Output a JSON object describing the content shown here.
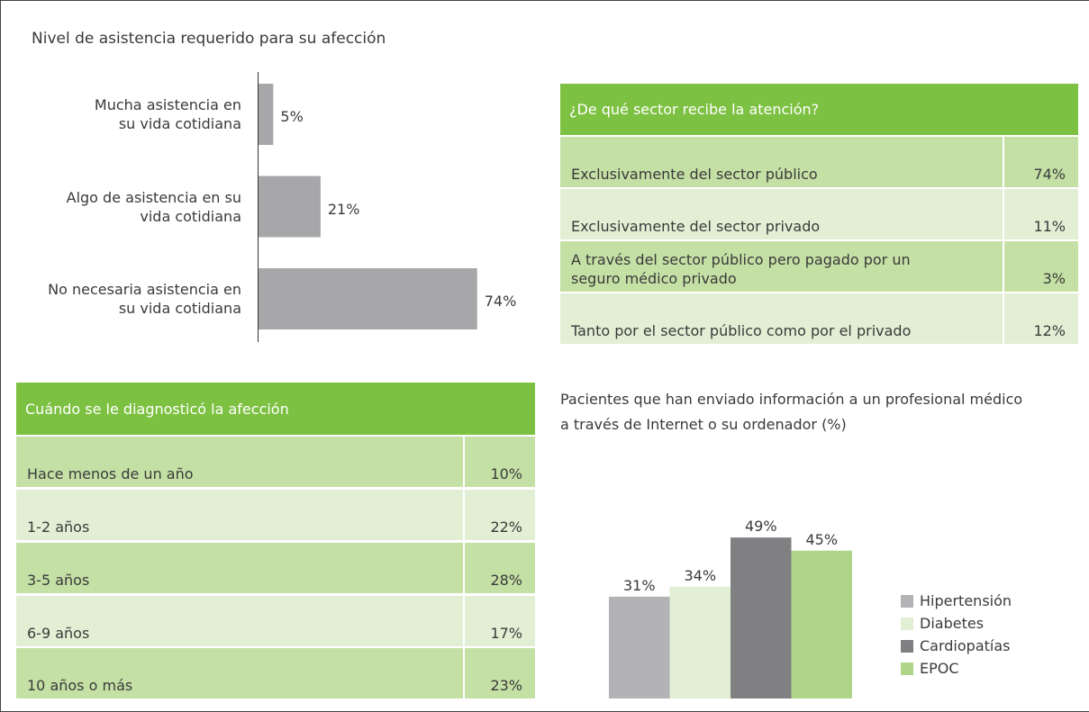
{
  "chart_data": [
    {
      "type": "bar",
      "orientation": "horizontal",
      "title": "Nivel de asistencia requerido para su afección",
      "categories": [
        "Mucha asistencia en\nsu vida cotidiana",
        "Algo de asistencia en su\nvida cotidiana",
        "No necesaria asistencia en\nsu vida cotidiana"
      ],
      "values": [
        5,
        21,
        74
      ],
      "value_labels": [
        "5%",
        "21%",
        "74%"
      ],
      "color": "#a7a7aa"
    },
    {
      "type": "bar",
      "title": "Pacientes que han enviado información a un profesional médico\na través de Internet o su ordenador (%)",
      "series": [
        {
          "name": "Hipertensión",
          "color": "#b3b3b5",
          "values": [
            31
          ],
          "value_labels": [
            "31%"
          ]
        },
        {
          "name": "Diabetes",
          "color": "#e2efd4",
          "values": [
            34
          ],
          "value_labels": [
            "34%"
          ]
        },
        {
          "name": "Cardiopatías",
          "color": "#808083",
          "values": [
            49
          ],
          "value_labels": [
            "49%"
          ]
        },
        {
          "name": "EPOC",
          "color": "#aed588",
          "values": [
            45
          ],
          "value_labels": [
            "45%"
          ]
        }
      ],
      "legend": "right"
    }
  ],
  "tables": [
    {
      "title": "¿De qué sector recibe la atención?",
      "rows": [
        [
          "Exclusivamente del sector público",
          "74%"
        ],
        [
          "Exclusivamente del sector privado",
          "11%"
        ],
        [
          "A través del sector público pero pagado por un\nseguro médico privado",
          "3%"
        ],
        [
          "Tanto por el sector público como por el privado",
          "12%"
        ]
      ]
    },
    {
      "title": "Cuándo se le diagnosticó la afección",
      "rows": [
        [
          "Hace menos de un año",
          "10%"
        ],
        [
          "1-2 años",
          "22%"
        ],
        [
          "3-5 años",
          "28%"
        ],
        [
          "6-9 años",
          "17%"
        ],
        [
          "10 años o más",
          "23%"
        ]
      ]
    }
  ]
}
